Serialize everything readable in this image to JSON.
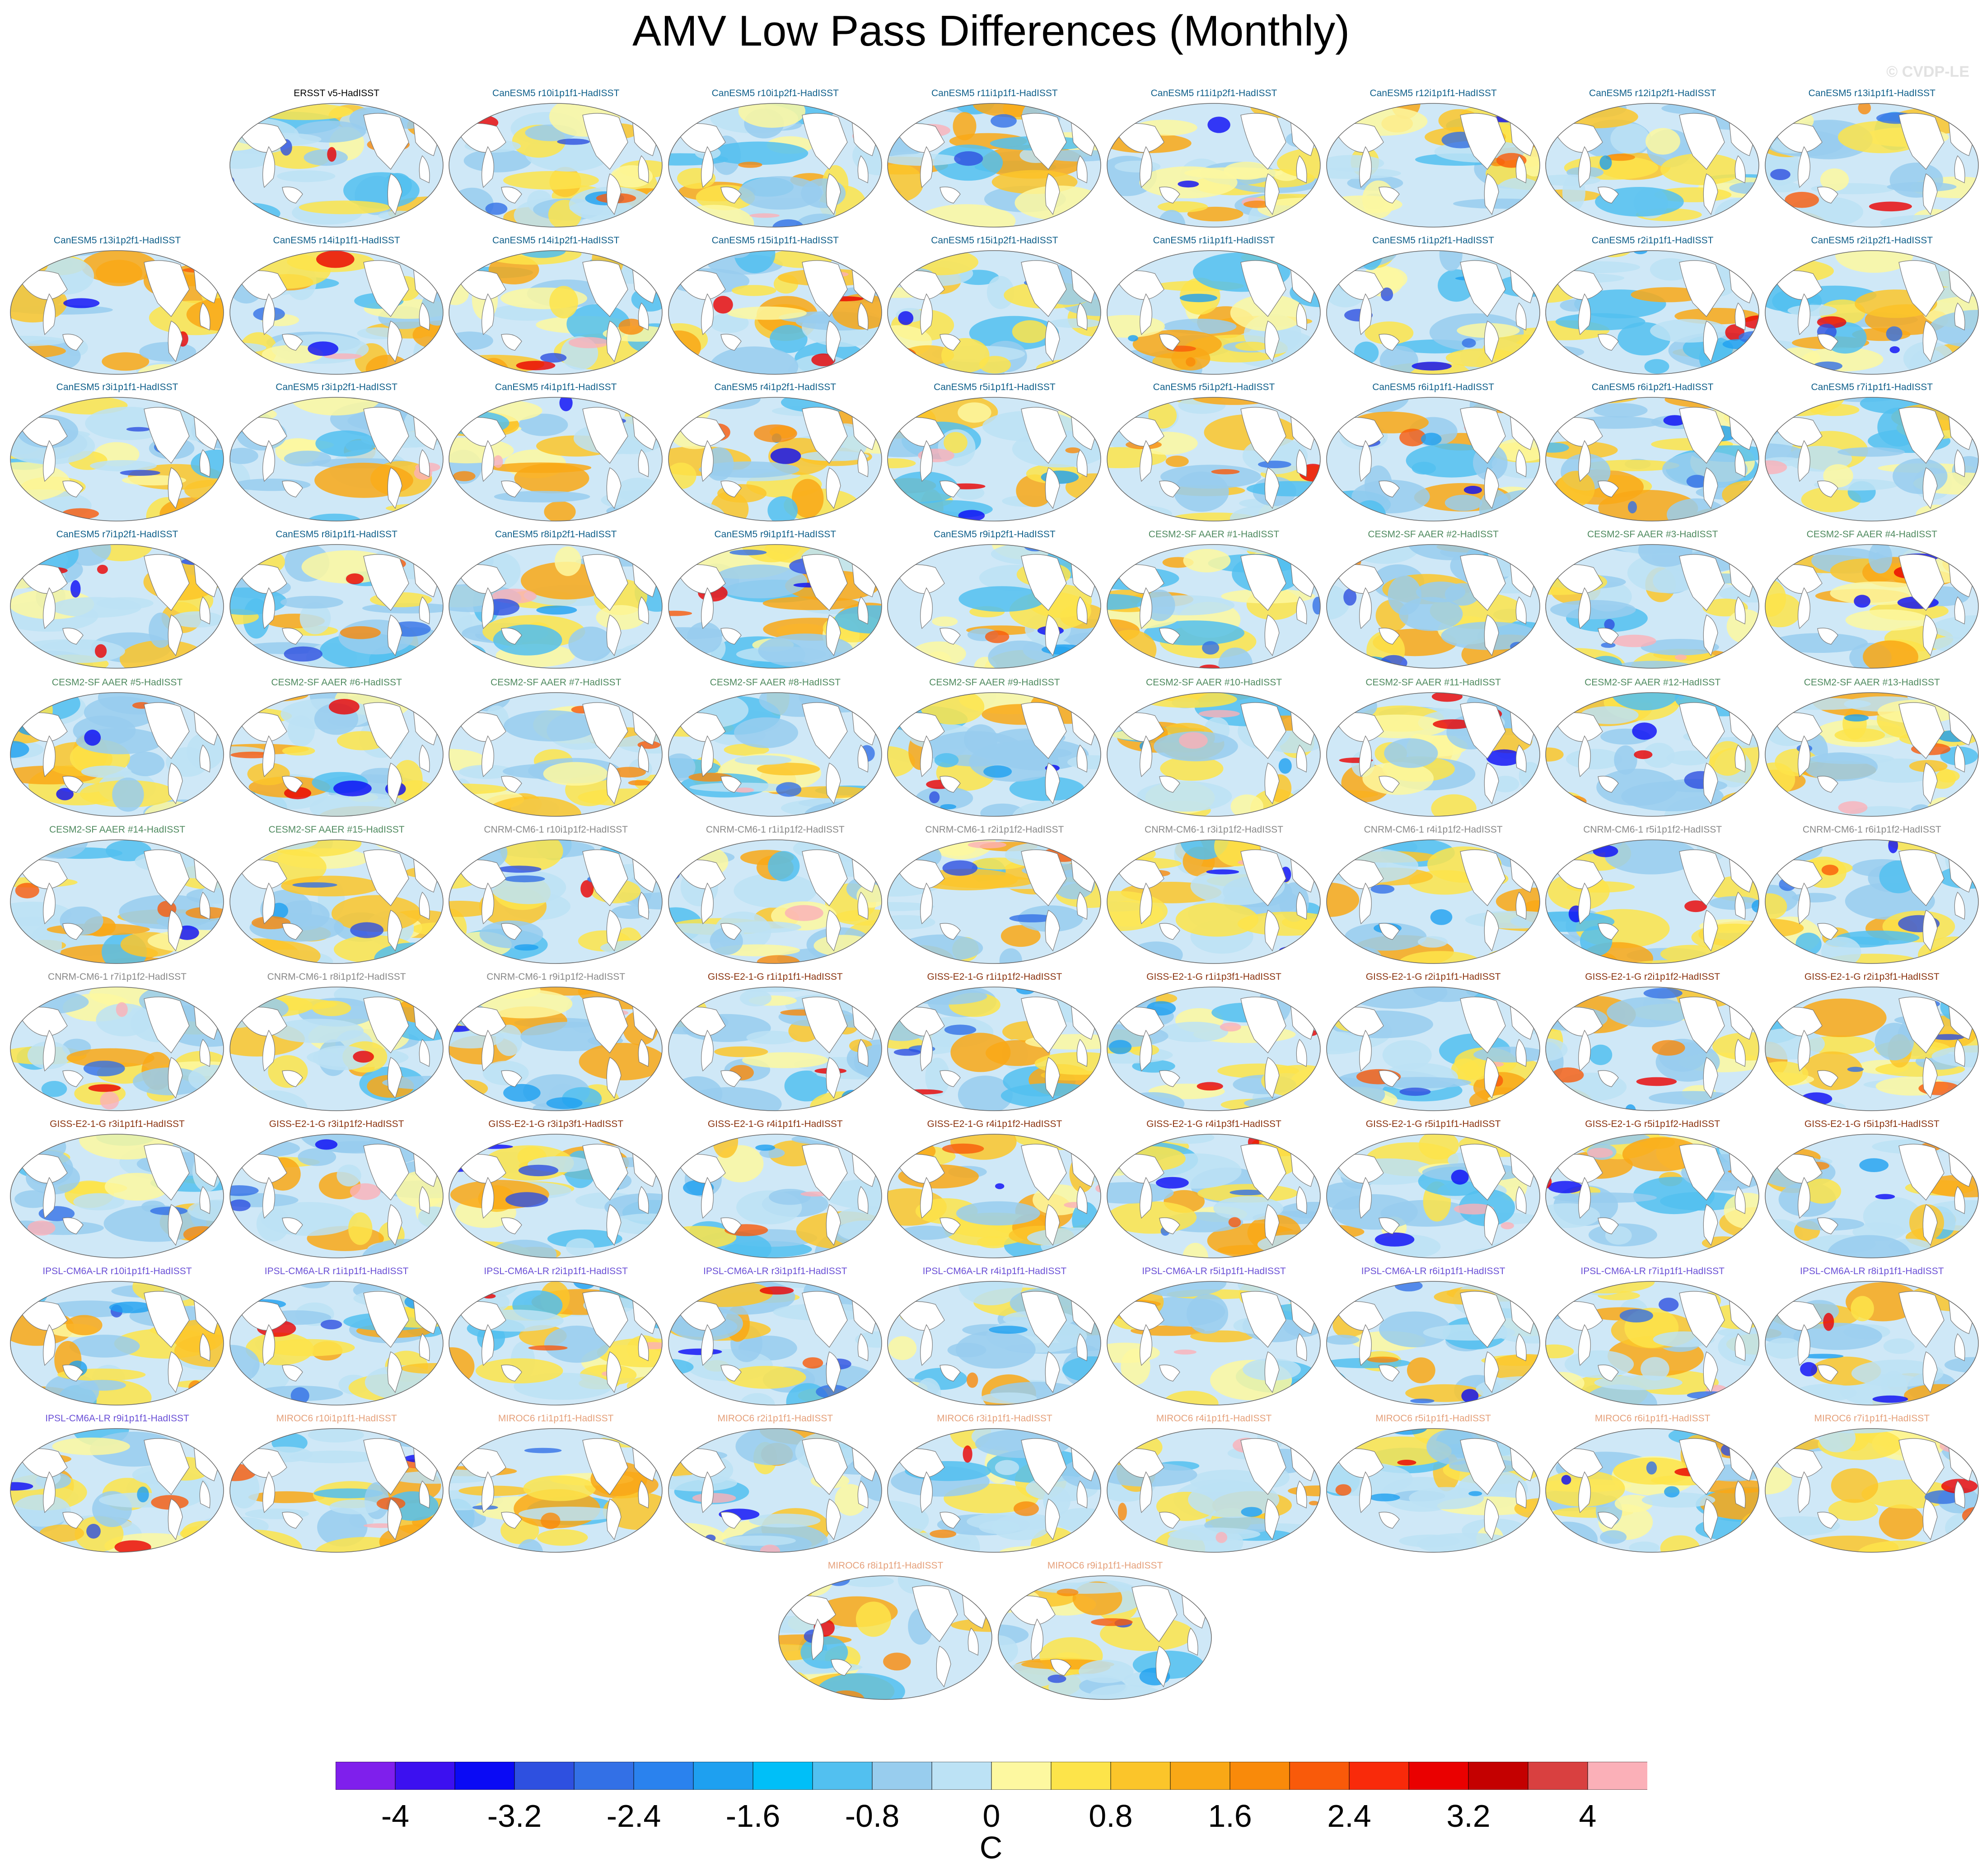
{
  "title": "AMV Low Pass Differences (Monthly)",
  "watermark": "© CVDP-LE",
  "group_colors": {
    "obs": "#000000",
    "CanESM5": "#0f5f8a",
    "CESM2-SF AAER": "#4f8a5f",
    "CNRM-CM6-1": "#888888",
    "GISS-E2-1-G": "#8b3410",
    "IPSL-CM6A-LR": "#6a4fd6",
    "MIROC6": "#e5a07a"
  },
  "panels": [
    {
      "label": "ERSST v5-HadISST",
      "group": "obs"
    },
    {
      "label": "CanESM5 r10i1p1f1-HadISST",
      "group": "CanESM5"
    },
    {
      "label": "CanESM5 r10i1p2f1-HadISST",
      "group": "CanESM5"
    },
    {
      "label": "CanESM5 r11i1p1f1-HadISST",
      "group": "CanESM5"
    },
    {
      "label": "CanESM5 r11i1p2f1-HadISST",
      "group": "CanESM5"
    },
    {
      "label": "CanESM5 r12i1p1f1-HadISST",
      "group": "CanESM5"
    },
    {
      "label": "CanESM5 r12i1p2f1-HadISST",
      "group": "CanESM5"
    },
    {
      "label": "CanESM5 r13i1p1f1-HadISST",
      "group": "CanESM5"
    },
    {
      "label": "CanESM5 r13i1p2f1-HadISST",
      "group": "CanESM5"
    },
    {
      "label": "CanESM5 r14i1p1f1-HadISST",
      "group": "CanESM5"
    },
    {
      "label": "CanESM5 r14i1p2f1-HadISST",
      "group": "CanESM5"
    },
    {
      "label": "CanESM5 r15i1p1f1-HadISST",
      "group": "CanESM5"
    },
    {
      "label": "CanESM5 r15i1p2f1-HadISST",
      "group": "CanESM5"
    },
    {
      "label": "CanESM5 r1i1p1f1-HadISST",
      "group": "CanESM5"
    },
    {
      "label": "CanESM5 r1i1p2f1-HadISST",
      "group": "CanESM5"
    },
    {
      "label": "CanESM5 r2i1p1f1-HadISST",
      "group": "CanESM5"
    },
    {
      "label": "CanESM5 r2i1p2f1-HadISST",
      "group": "CanESM5"
    },
    {
      "label": "CanESM5 r3i1p1f1-HadISST",
      "group": "CanESM5"
    },
    {
      "label": "CanESM5 r3i1p2f1-HadISST",
      "group": "CanESM5"
    },
    {
      "label": "CanESM5 r4i1p1f1-HadISST",
      "group": "CanESM5"
    },
    {
      "label": "CanESM5 r4i1p2f1-HadISST",
      "group": "CanESM5"
    },
    {
      "label": "CanESM5 r5i1p1f1-HadISST",
      "group": "CanESM5"
    },
    {
      "label": "CanESM5 r5i1p2f1-HadISST",
      "group": "CanESM5"
    },
    {
      "label": "CanESM5 r6i1p1f1-HadISST",
      "group": "CanESM5"
    },
    {
      "label": "CanESM5 r6i1p2f1-HadISST",
      "group": "CanESM5"
    },
    {
      "label": "CanESM5 r7i1p1f1-HadISST",
      "group": "CanESM5"
    },
    {
      "label": "CanESM5 r7i1p2f1-HadISST",
      "group": "CanESM5"
    },
    {
      "label": "CanESM5 r8i1p1f1-HadISST",
      "group": "CanESM5"
    },
    {
      "label": "CanESM5 r8i1p2f1-HadISST",
      "group": "CanESM5"
    },
    {
      "label": "CanESM5 r9i1p1f1-HadISST",
      "group": "CanESM5"
    },
    {
      "label": "CanESM5 r9i1p2f1-HadISST",
      "group": "CanESM5"
    },
    {
      "label": "CESM2-SF AAER #1-HadISST",
      "group": "CESM2-SF AAER"
    },
    {
      "label": "CESM2-SF AAER #2-HadISST",
      "group": "CESM2-SF AAER"
    },
    {
      "label": "CESM2-SF AAER #3-HadISST",
      "group": "CESM2-SF AAER"
    },
    {
      "label": "CESM2-SF AAER #4-HadISST",
      "group": "CESM2-SF AAER"
    },
    {
      "label": "CESM2-SF AAER #5-HadISST",
      "group": "CESM2-SF AAER"
    },
    {
      "label": "CESM2-SF AAER #6-HadISST",
      "group": "CESM2-SF AAER"
    },
    {
      "label": "CESM2-SF AAER #7-HadISST",
      "group": "CESM2-SF AAER"
    },
    {
      "label": "CESM2-SF AAER #8-HadISST",
      "group": "CESM2-SF AAER"
    },
    {
      "label": "CESM2-SF AAER #9-HadISST",
      "group": "CESM2-SF AAER"
    },
    {
      "label": "CESM2-SF AAER #10-HadISST",
      "group": "CESM2-SF AAER"
    },
    {
      "label": "CESM2-SF AAER #11-HadISST",
      "group": "CESM2-SF AAER"
    },
    {
      "label": "CESM2-SF AAER #12-HadISST",
      "group": "CESM2-SF AAER"
    },
    {
      "label": "CESM2-SF AAER #13-HadISST",
      "group": "CESM2-SF AAER"
    },
    {
      "label": "CESM2-SF AAER #14-HadISST",
      "group": "CESM2-SF AAER"
    },
    {
      "label": "CESM2-SF AAER #15-HadISST",
      "group": "CESM2-SF AAER"
    },
    {
      "label": "CNRM-CM6-1 r10i1p1f2-HadISST",
      "group": "CNRM-CM6-1"
    },
    {
      "label": "CNRM-CM6-1 r1i1p1f2-HadISST",
      "group": "CNRM-CM6-1"
    },
    {
      "label": "CNRM-CM6-1 r2i1p1f2-HadISST",
      "group": "CNRM-CM6-1"
    },
    {
      "label": "CNRM-CM6-1 r3i1p1f2-HadISST",
      "group": "CNRM-CM6-1"
    },
    {
      "label": "CNRM-CM6-1 r4i1p1f2-HadISST",
      "group": "CNRM-CM6-1"
    },
    {
      "label": "CNRM-CM6-1 r5i1p1f2-HadISST",
      "group": "CNRM-CM6-1"
    },
    {
      "label": "CNRM-CM6-1 r6i1p1f2-HadISST",
      "group": "CNRM-CM6-1"
    },
    {
      "label": "CNRM-CM6-1 r7i1p1f2-HadISST",
      "group": "CNRM-CM6-1"
    },
    {
      "label": "CNRM-CM6-1 r8i1p1f2-HadISST",
      "group": "CNRM-CM6-1"
    },
    {
      "label": "CNRM-CM6-1 r9i1p1f2-HadISST",
      "group": "CNRM-CM6-1"
    },
    {
      "label": "GISS-E2-1-G r1i1p1f1-HadISST",
      "group": "GISS-E2-1-G"
    },
    {
      "label": "GISS-E2-1-G r1i1p1f2-HadISST",
      "group": "GISS-E2-1-G"
    },
    {
      "label": "GISS-E2-1-G r1i1p3f1-HadISST",
      "group": "GISS-E2-1-G"
    },
    {
      "label": "GISS-E2-1-G r2i1p1f1-HadISST",
      "group": "GISS-E2-1-G"
    },
    {
      "label": "GISS-E2-1-G r2i1p1f2-HadISST",
      "group": "GISS-E2-1-G"
    },
    {
      "label": "GISS-E2-1-G r2i1p3f1-HadISST",
      "group": "GISS-E2-1-G"
    },
    {
      "label": "GISS-E2-1-G r3i1p1f1-HadISST",
      "group": "GISS-E2-1-G"
    },
    {
      "label": "GISS-E2-1-G r3i1p1f2-HadISST",
      "group": "GISS-E2-1-G"
    },
    {
      "label": "GISS-E2-1-G r3i1p3f1-HadISST",
      "group": "GISS-E2-1-G"
    },
    {
      "label": "GISS-E2-1-G r4i1p1f1-HadISST",
      "group": "GISS-E2-1-G"
    },
    {
      "label": "GISS-E2-1-G r4i1p1f2-HadISST",
      "group": "GISS-E2-1-G"
    },
    {
      "label": "GISS-E2-1-G r4i1p3f1-HadISST",
      "group": "GISS-E2-1-G"
    },
    {
      "label": "GISS-E2-1-G r5i1p1f1-HadISST",
      "group": "GISS-E2-1-G"
    },
    {
      "label": "GISS-E2-1-G r5i1p1f2-HadISST",
      "group": "GISS-E2-1-G"
    },
    {
      "label": "GISS-E2-1-G r5i1p3f1-HadISST",
      "group": "GISS-E2-1-G"
    },
    {
      "label": "IPSL-CM6A-LR r10i1p1f1-HadISST",
      "group": "IPSL-CM6A-LR"
    },
    {
      "label": "IPSL-CM6A-LR r1i1p1f1-HadISST",
      "group": "IPSL-CM6A-LR"
    },
    {
      "label": "IPSL-CM6A-LR r2i1p1f1-HadISST",
      "group": "IPSL-CM6A-LR"
    },
    {
      "label": "IPSL-CM6A-LR r3i1p1f1-HadISST",
      "group": "IPSL-CM6A-LR"
    },
    {
      "label": "IPSL-CM6A-LR r4i1p1f1-HadISST",
      "group": "IPSL-CM6A-LR"
    },
    {
      "label": "IPSL-CM6A-LR r5i1p1f1-HadISST",
      "group": "IPSL-CM6A-LR"
    },
    {
      "label": "IPSL-CM6A-LR r6i1p1f1-HadISST",
      "group": "IPSL-CM6A-LR"
    },
    {
      "label": "IPSL-CM6A-LR r7i1p1f1-HadISST",
      "group": "IPSL-CM6A-LR"
    },
    {
      "label": "IPSL-CM6A-LR r8i1p1f1-HadISST",
      "group": "IPSL-CM6A-LR"
    },
    {
      "label": "IPSL-CM6A-LR r9i1p1f1-HadISST",
      "group": "IPSL-CM6A-LR"
    },
    {
      "label": "MIROC6 r10i1p1f1-HadISST",
      "group": "MIROC6"
    },
    {
      "label": "MIROC6 r1i1p1f1-HadISST",
      "group": "MIROC6"
    },
    {
      "label": "MIROC6 r2i1p1f1-HadISST",
      "group": "MIROC6"
    },
    {
      "label": "MIROC6 r3i1p1f1-HadISST",
      "group": "MIROC6"
    },
    {
      "label": "MIROC6 r4i1p1f1-HadISST",
      "group": "MIROC6"
    },
    {
      "label": "MIROC6 r5i1p1f1-HadISST",
      "group": "MIROC6"
    },
    {
      "label": "MIROC6 r6i1p1f1-HadISST",
      "group": "MIROC6"
    },
    {
      "label": "MIROC6 r7i1p1f1-HadISST",
      "group": "MIROC6"
    },
    {
      "label": "MIROC6 r8i1p1f1-HadISST",
      "group": "MIROC6"
    },
    {
      "label": "MIROC6 r9i1p1f1-HadISST",
      "group": "MIROC6"
    }
  ],
  "colorbar": {
    "colors": [
      "#7f1fec",
      "#3c10f0",
      "#0a0af5",
      "#2e50e0",
      "#3370e6",
      "#2a82ee",
      "#1ea0f0",
      "#00bff8",
      "#52c0f0",
      "#98cdee",
      "#bce2f5",
      "#fdf8a0",
      "#fde44a",
      "#fbc52a",
      "#f9a816",
      "#f98a0a",
      "#f95a0a",
      "#f92a0a",
      "#ea0000",
      "#c40000",
      "#d94040",
      "#fbb0b8"
    ],
    "ticks": [
      "-4",
      "-3.2",
      "-2.4",
      "-1.6",
      "-0.8",
      "0",
      "0.8",
      "1.6",
      "2.4",
      "3.2",
      "4"
    ],
    "unit": "C"
  }
}
